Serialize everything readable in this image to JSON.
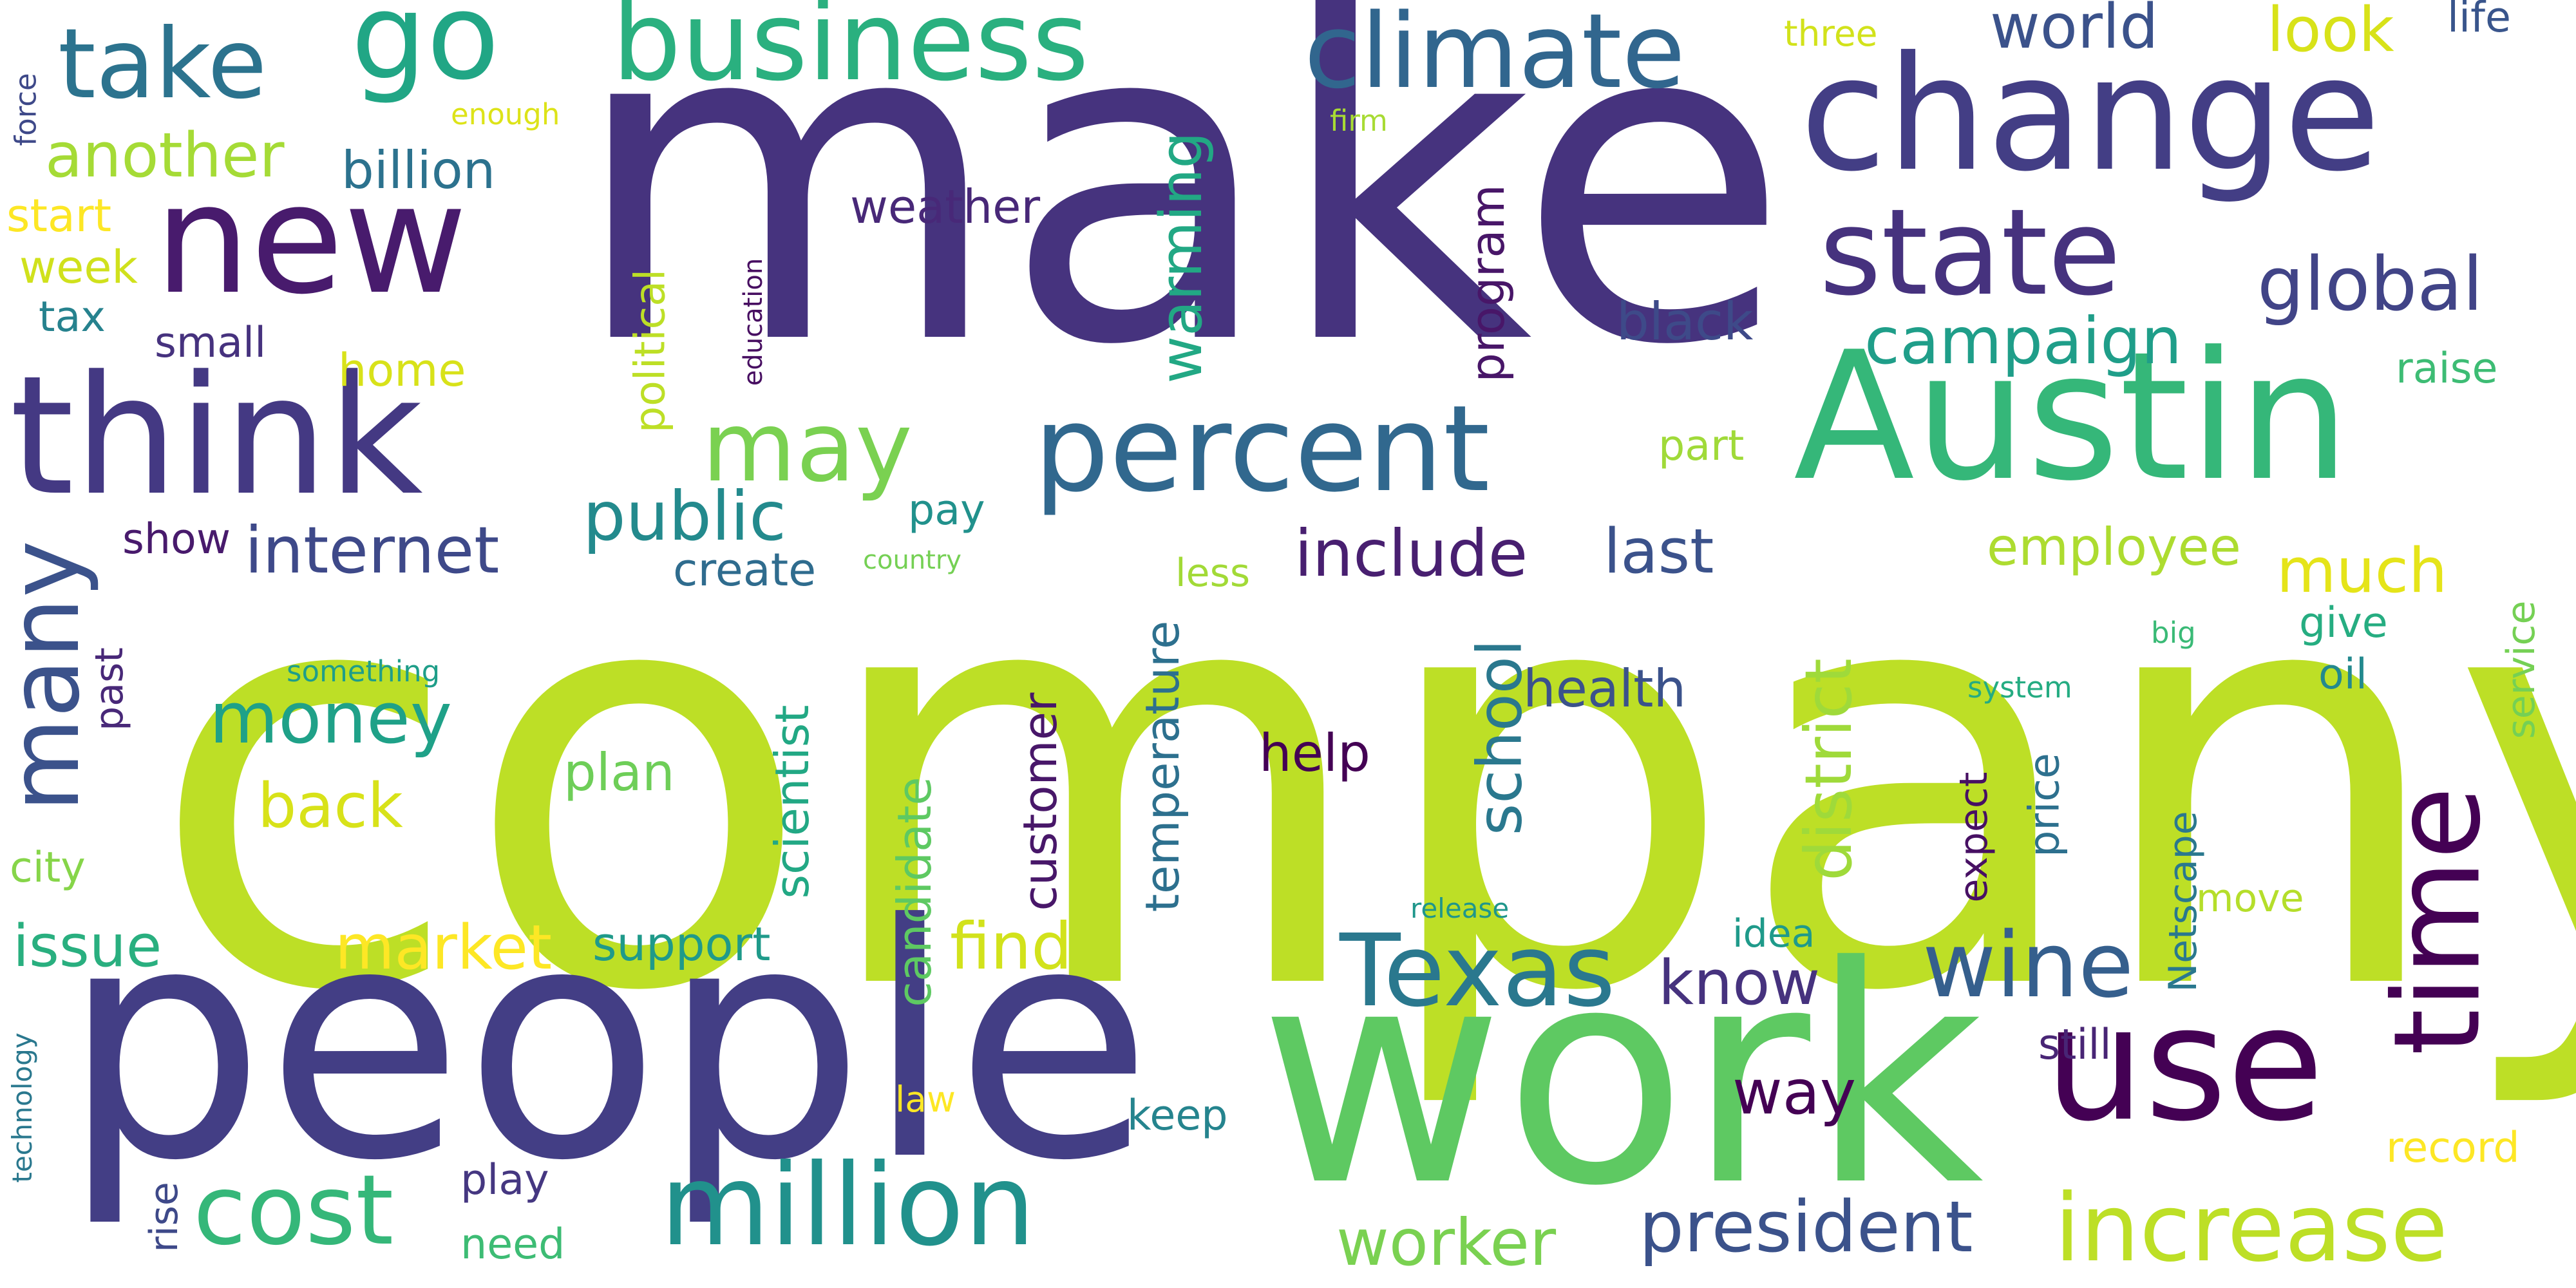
{
  "words": [
    {
      "text": "company",
      "color": "#bddf26"
    },
    {
      "text": "make",
      "color": "#46337e"
    },
    {
      "text": "people",
      "color": "#433e85"
    },
    {
      "text": "work",
      "color": "#5ec962"
    },
    {
      "text": "Austin",
      "color": "#35b779"
    },
    {
      "text": "change",
      "color": "#433e85"
    },
    {
      "text": "think",
      "color": "#443983"
    },
    {
      "text": "new",
      "color": "#481b6d"
    },
    {
      "text": "use",
      "color": "#440154"
    },
    {
      "text": "percent",
      "color": "#31688e"
    },
    {
      "text": "state",
      "color": "#46327e"
    },
    {
      "text": "million",
      "color": "#21918c"
    },
    {
      "text": "business",
      "color": "#2ab07f"
    },
    {
      "text": "climate",
      "color": "#31668e"
    },
    {
      "text": "go",
      "color": "#21a685"
    },
    {
      "text": "take",
      "color": "#2c738e"
    },
    {
      "text": "increase",
      "color": "#bddf26"
    },
    {
      "text": "time",
      "color": "#440154"
    },
    {
      "text": "Texas",
      "color": "#2a788e"
    },
    {
      "text": "cost",
      "color": "#35b779"
    },
    {
      "text": "many",
      "color": "#3b528b"
    },
    {
      "text": "wine",
      "color": "#355f8d"
    },
    {
      "text": "may",
      "color": "#7ad151"
    },
    {
      "text": "president",
      "color": "#3b528b"
    },
    {
      "text": "global",
      "color": "#414487"
    },
    {
      "text": "worker",
      "color": "#7ad151"
    },
    {
      "text": "campaign",
      "color": "#1f9e89"
    },
    {
      "text": "public",
      "color": "#238a8d"
    },
    {
      "text": "district",
      "color": "#9fda3a"
    },
    {
      "text": "include",
      "color": "#481f70"
    },
    {
      "text": "money",
      "color": "#1fa188"
    },
    {
      "text": "internet",
      "color": "#3e4989"
    },
    {
      "text": "market",
      "color": "#fde725"
    },
    {
      "text": "find",
      "color": "#d2e21b"
    },
    {
      "text": "world",
      "color": "#3b528b"
    },
    {
      "text": "another",
      "color": "#a5db36"
    },
    {
      "text": "look",
      "color": "#d8e219"
    },
    {
      "text": "warming",
      "color": "#22a884"
    },
    {
      "text": "back",
      "color": "#d8e219"
    },
    {
      "text": "school",
      "color": "#2a788e"
    },
    {
      "text": "last",
      "color": "#3b528b"
    },
    {
      "text": "much",
      "color": "#e5e419"
    },
    {
      "text": "know",
      "color": "#46327e"
    },
    {
      "text": "way",
      "color": "#440154"
    },
    {
      "text": "issue",
      "color": "#29af7f"
    },
    {
      "text": "billion",
      "color": "#2c728e"
    },
    {
      "text": "weather",
      "color": "#482878"
    },
    {
      "text": "black",
      "color": "#3e4a89"
    },
    {
      "text": "employee",
      "color": "#addc30"
    },
    {
      "text": "temperature",
      "color": "#2d708e"
    },
    {
      "text": "customer",
      "color": "#481769"
    },
    {
      "text": "scientist",
      "color": "#22a884"
    },
    {
      "text": "candidate",
      "color": "#5ec962"
    },
    {
      "text": "health",
      "color": "#3b528b"
    },
    {
      "text": "help",
      "color": "#440154"
    },
    {
      "text": "plan",
      "color": "#6ece58"
    },
    {
      "text": "support",
      "color": "#1f9a8a"
    },
    {
      "text": "program",
      "color": "#481668"
    },
    {
      "text": "create",
      "color": "#2f6c8e"
    },
    {
      "text": "start",
      "color": "#fde725"
    },
    {
      "text": "week",
      "color": "#d0e11c"
    },
    {
      "text": "tax",
      "color": "#26828e"
    },
    {
      "text": "small",
      "color": "#46327e"
    },
    {
      "text": "home",
      "color": "#d8e219"
    },
    {
      "text": "political",
      "color": "#bddf26"
    },
    {
      "text": "part",
      "color": "#a0da39"
    },
    {
      "text": "pay",
      "color": "#21918c"
    },
    {
      "text": "less",
      "color": "#a2da37"
    },
    {
      "text": "show",
      "color": "#481a6c"
    },
    {
      "text": "give",
      "color": "#26ad81"
    },
    {
      "text": "oil",
      "color": "#23898e"
    },
    {
      "text": "raise",
      "color": "#3dbc74"
    },
    {
      "text": "service",
      "color": "#75d054"
    },
    {
      "text": "price",
      "color": "#2d708e"
    },
    {
      "text": "expect",
      "color": "#471063"
    },
    {
      "text": "Netscape",
      "color": "#2a788e"
    },
    {
      "text": "move",
      "color": "#b5de2b"
    },
    {
      "text": "still",
      "color": "#482575"
    },
    {
      "text": "idea",
      "color": "#1f9a8a"
    },
    {
      "text": "keep",
      "color": "#25848e"
    },
    {
      "text": "record",
      "color": "#fde725"
    },
    {
      "text": "play",
      "color": "#453781"
    },
    {
      "text": "need",
      "color": "#3dbc74"
    },
    {
      "text": "rise",
      "color": "#3e4989"
    },
    {
      "text": "city",
      "color": "#86d549"
    },
    {
      "text": "past",
      "color": "#482878"
    },
    {
      "text": "law",
      "color": "#fde725"
    },
    {
      "text": "three",
      "color": "#d2e21b"
    },
    {
      "text": "life",
      "color": "#39558c"
    },
    {
      "text": "force",
      "color": "#3e4989"
    },
    {
      "text": "enough",
      "color": "#dde318"
    },
    {
      "text": "firm",
      "color": "#a8db34"
    },
    {
      "text": "education",
      "color": "#470e61"
    },
    {
      "text": "something",
      "color": "#1f9e89"
    },
    {
      "text": "country",
      "color": "#75d054"
    },
    {
      "text": "system",
      "color": "#25ac82"
    },
    {
      "text": "big",
      "color": "#3aba76"
    },
    {
      "text": "release",
      "color": "#1f968b"
    },
    {
      "text": "technology",
      "color": "#2a788e"
    }
  ]
}
